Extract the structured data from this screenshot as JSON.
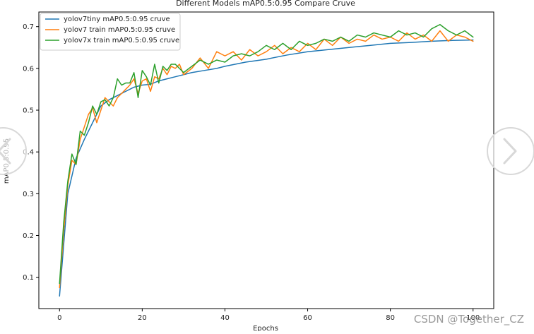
{
  "chart_data": {
    "type": "line",
    "title": "Different Models mAP0.5:0.95 Compare Cruve",
    "xlabel": "Epochs",
    "ylabel": "mAP0.5:0.95",
    "xlim": [
      -5,
      105
    ],
    "ylim": [
      0.025,
      0.735
    ],
    "xticks": [
      0,
      20,
      40,
      60,
      80,
      100
    ],
    "yticks": [
      0.1,
      0.2,
      0.3,
      0.4,
      0.5,
      0.6,
      0.7
    ],
    "grid": false,
    "legend_position": "top-left",
    "series": [
      {
        "name": "yolov7tiny mAP0.5:0.95 cruve",
        "color": "#1f77b4",
        "x": [
          0,
          2,
          4,
          6,
          8,
          10,
          12,
          14,
          16,
          18,
          20,
          22,
          24,
          26,
          28,
          30,
          32,
          35,
          38,
          40,
          45,
          50,
          55,
          60,
          65,
          70,
          75,
          80,
          85,
          90,
          95,
          100
        ],
        "y": [
          0.055,
          0.3,
          0.385,
          0.43,
          0.47,
          0.51,
          0.525,
          0.535,
          0.545,
          0.555,
          0.56,
          0.562,
          0.57,
          0.575,
          0.58,
          0.585,
          0.59,
          0.595,
          0.6,
          0.605,
          0.615,
          0.622,
          0.632,
          0.64,
          0.645,
          0.65,
          0.655,
          0.66,
          0.662,
          0.665,
          0.667,
          0.668
        ]
      },
      {
        "name": "yolov7 train mAP0.5:0.95 cruve",
        "color": "#ff7f0e",
        "x": [
          0,
          1,
          2,
          3,
          4,
          5,
          6,
          7,
          8,
          9,
          10,
          11,
          12,
          13,
          14,
          15,
          16,
          17,
          18,
          19,
          20,
          21,
          22,
          23,
          24,
          25,
          26,
          27,
          28,
          29,
          30,
          32,
          34,
          36,
          38,
          40,
          42,
          44,
          46,
          48,
          50,
          52,
          54,
          56,
          58,
          60,
          62,
          64,
          66,
          68,
          70,
          72,
          74,
          76,
          78,
          80,
          82,
          84,
          86,
          88,
          90,
          92,
          94,
          96,
          98,
          100
        ],
        "y": [
          0.075,
          0.21,
          0.32,
          0.38,
          0.37,
          0.43,
          0.46,
          0.49,
          0.505,
          0.47,
          0.5,
          0.53,
          0.52,
          0.51,
          0.53,
          0.54,
          0.55,
          0.56,
          0.575,
          0.54,
          0.57,
          0.575,
          0.545,
          0.58,
          0.575,
          0.6,
          0.585,
          0.605,
          0.6,
          0.61,
          0.585,
          0.6,
          0.625,
          0.6,
          0.64,
          0.63,
          0.64,
          0.62,
          0.645,
          0.63,
          0.64,
          0.655,
          0.635,
          0.65,
          0.64,
          0.66,
          0.645,
          0.67,
          0.655,
          0.675,
          0.66,
          0.67,
          0.665,
          0.68,
          0.67,
          0.675,
          0.665,
          0.685,
          0.67,
          0.68,
          0.665,
          0.69,
          0.665,
          0.68,
          0.675,
          0.665
        ]
      },
      {
        "name": "yolov7x train mAP0.5:0.95 cruve",
        "color": "#2ca02c",
        "x": [
          0,
          1,
          2,
          3,
          4,
          5,
          6,
          7,
          8,
          9,
          10,
          11,
          12,
          13,
          14,
          15,
          16,
          17,
          18,
          19,
          20,
          21,
          22,
          23,
          24,
          25,
          26,
          27,
          28,
          29,
          30,
          32,
          34,
          36,
          38,
          40,
          42,
          44,
          46,
          48,
          50,
          52,
          54,
          56,
          58,
          60,
          62,
          64,
          66,
          68,
          70,
          72,
          74,
          76,
          78,
          80,
          82,
          84,
          86,
          88,
          90,
          92,
          94,
          96,
          98,
          100
        ],
        "y": [
          0.085,
          0.23,
          0.33,
          0.395,
          0.37,
          0.45,
          0.44,
          0.47,
          0.51,
          0.49,
          0.52,
          0.525,
          0.51,
          0.53,
          0.575,
          0.56,
          0.565,
          0.565,
          0.59,
          0.53,
          0.595,
          0.58,
          0.56,
          0.61,
          0.565,
          0.605,
          0.595,
          0.61,
          0.61,
          0.6,
          0.59,
          0.605,
          0.62,
          0.61,
          0.62,
          0.615,
          0.63,
          0.635,
          0.63,
          0.64,
          0.655,
          0.645,
          0.66,
          0.645,
          0.665,
          0.655,
          0.66,
          0.67,
          0.665,
          0.675,
          0.665,
          0.68,
          0.675,
          0.685,
          0.68,
          0.675,
          0.69,
          0.68,
          0.685,
          0.675,
          0.695,
          0.705,
          0.69,
          0.68,
          0.69,
          0.675
        ]
      }
    ]
  },
  "watermark": {
    "text": "CSDN @Together_CZ",
    "left_nav_icon": "chevron-left-icon",
    "right_nav_icon": "chevron-right-icon"
  }
}
